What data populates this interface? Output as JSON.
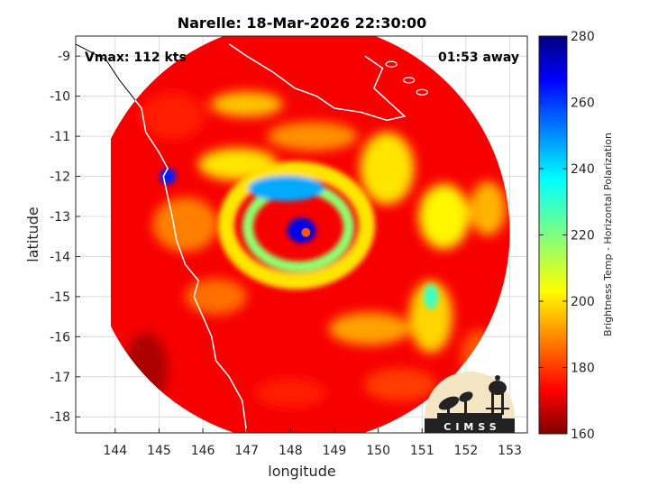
{
  "chart_data": {
    "type": "heatmap",
    "title": "Narelle: 18-Mar-2026 22:30:00",
    "xlabel": "longitude",
    "ylabel": "latitude",
    "xlim": [
      143.1,
      153.4
    ],
    "ylim": [
      -18.4,
      -8.5
    ],
    "x_ticks": [
      144,
      145,
      146,
      147,
      148,
      149,
      150,
      151,
      152,
      153
    ],
    "y_ticks": [
      -9,
      -10,
      -11,
      -12,
      -13,
      -14,
      -15,
      -16,
      -17,
      -18
    ],
    "grid": true,
    "annotations": {
      "vmax": "Vmax: 112 kts",
      "time_away": "01:53 away"
    },
    "colorbar": {
      "label": "Brightness Temp - Horizontal Polarization",
      "range": [
        160,
        280
      ],
      "ticks": [
        280,
        260,
        240,
        220,
        200,
        180,
        160
      ],
      "colormap": "jet"
    },
    "storm_center": {
      "lon": 148.3,
      "lat": -13.4
    },
    "swath": {
      "center_lon": 148.2,
      "center_lat": -13.4,
      "radius_deg": 4.8
    },
    "features": [
      {
        "label": "eye",
        "lon": 148.35,
        "lat": -13.4,
        "value": 255
      },
      {
        "label": "eyewall",
        "lon": 148.25,
        "lat": -13.35,
        "value": 172
      },
      {
        "label": "north rainband",
        "lon": 147.9,
        "lat": -12.3,
        "value": 195
      },
      {
        "label": "outer convection west",
        "lon": 145.2,
        "lat": -12.0,
        "value": 178
      },
      {
        "label": "rainband east",
        "lon": 151.2,
        "lat": -15.0,
        "value": 212
      }
    ]
  },
  "logo": {
    "text": "CIMSS"
  },
  "colors": {
    "coastline": "#ffffff",
    "land_outline": "#000000",
    "background": "#ffffff"
  }
}
